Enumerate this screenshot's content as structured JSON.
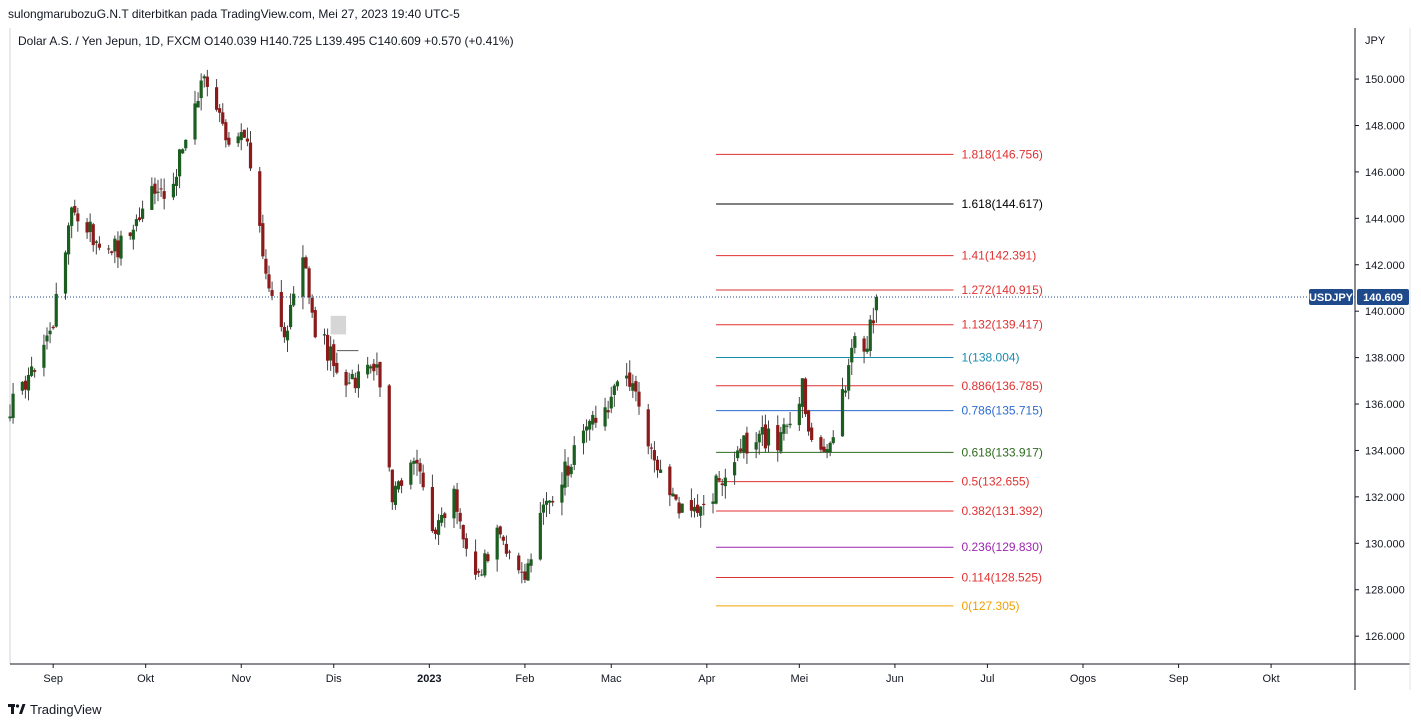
{
  "header": {
    "published_line": "sulongmarubozuG.N.T diterbitkan pada TradingView.com, Mei 27, 2023 19:40 UTC-5"
  },
  "legend": {
    "symbol": "Dolar A.S. / Yen Jepun, 1D, FXCM",
    "ohlc": "O140.039  H140.725  L139.495  C140.609  +0.570 (+0.41%)"
  },
  "footer": {
    "brand_label": "TradingView",
    "logo_icon": "tradingview-logo-icon"
  },
  "chart_data": {
    "type": "candlestick",
    "currency_label": "JPY",
    "last_price_tag": {
      "symbol": "USDJPY",
      "price": "140.609",
      "value": 140.609,
      "color": "#1e4a8c"
    },
    "y_axis": {
      "range": [
        124.8,
        152.2
      ],
      "ticks": [
        {
          "label": "126.000",
          "value": 126
        },
        {
          "label": "128.000",
          "value": 128
        },
        {
          "label": "130.000",
          "value": 130
        },
        {
          "label": "132.000",
          "value": 132
        },
        {
          "label": "134.000",
          "value": 134
        },
        {
          "label": "136.000",
          "value": 136
        },
        {
          "label": "138.000",
          "value": 138
        },
        {
          "label": "140.000",
          "value": 140
        },
        {
          "label": "142.000",
          "value": 142
        },
        {
          "label": "144.000",
          "value": 144
        },
        {
          "label": "146.000",
          "value": 146
        },
        {
          "label": "148.000",
          "value": 148
        },
        {
          "label": "150.000",
          "value": 150
        }
      ]
    },
    "x_axis": {
      "ticks": [
        {
          "label": "Sep",
          "date": "2022-09-01"
        },
        {
          "label": "Okt",
          "date": "2022-10-01"
        },
        {
          "label": "Nov",
          "date": "2022-11-01"
        },
        {
          "label": "Dis",
          "date": "2022-12-01"
        },
        {
          "label": "2023",
          "date": "2023-01-01",
          "bold": true
        },
        {
          "label": "Feb",
          "date": "2023-02-01"
        },
        {
          "label": "Mac",
          "date": "2023-03-01"
        },
        {
          "label": "Apr",
          "date": "2023-04-01"
        },
        {
          "label": "Mei",
          "date": "2023-05-01"
        },
        {
          "label": "Jun",
          "date": "2023-06-01"
        },
        {
          "label": "Jul",
          "date": "2023-07-01"
        },
        {
          "label": "Ogos",
          "date": "2023-08-01"
        },
        {
          "label": "Sep",
          "date": "2023-09-01"
        },
        {
          "label": "Okt",
          "date": "2023-10-01"
        }
      ]
    },
    "colors": {
      "up": "#1b5e20",
      "down": "#8b1a1a",
      "wick": "#444444"
    },
    "price_path": [
      {
        "date": "2022-08-18",
        "close": 135.8
      },
      {
        "date": "2022-08-25",
        "close": 137.2
      },
      {
        "date": "2022-09-01",
        "close": 139.6
      },
      {
        "date": "2022-09-07",
        "close": 144.0
      },
      {
        "date": "2022-09-14",
        "close": 143.2
      },
      {
        "date": "2022-09-22",
        "close": 142.5
      },
      {
        "date": "2022-09-29",
        "close": 144.4
      },
      {
        "date": "2022-10-07",
        "close": 145.3
      },
      {
        "date": "2022-10-14",
        "close": 147.0
      },
      {
        "date": "2022-10-20",
        "close": 150.1
      },
      {
        "date": "2022-10-24",
        "close": 148.9
      },
      {
        "date": "2022-10-28",
        "close": 147.4
      },
      {
        "date": "2022-11-01",
        "close": 148.2
      },
      {
        "date": "2022-11-04",
        "close": 146.7
      },
      {
        "date": "2022-11-10",
        "close": 141.0
      },
      {
        "date": "2022-11-15",
        "close": 139.2
      },
      {
        "date": "2022-11-21",
        "close": 142.0
      },
      {
        "date": "2022-11-25",
        "close": 139.2
      },
      {
        "date": "2022-11-30",
        "close": 138.1
      },
      {
        "date": "2022-12-05",
        "close": 136.6
      },
      {
        "date": "2022-12-12",
        "close": 137.5
      },
      {
        "date": "2022-12-15",
        "close": 137.8
      },
      {
        "date": "2022-12-20",
        "close": 131.8
      },
      {
        "date": "2022-12-27",
        "close": 133.5
      },
      {
        "date": "2023-01-03",
        "close": 130.5
      },
      {
        "date": "2023-01-09",
        "close": 131.8
      },
      {
        "date": "2023-01-16",
        "close": 128.3
      },
      {
        "date": "2023-01-23",
        "close": 130.2
      },
      {
        "date": "2023-02-01",
        "close": 128.8
      },
      {
        "date": "2023-02-06",
        "close": 131.3
      },
      {
        "date": "2023-02-14",
        "close": 133.0
      },
      {
        "date": "2023-02-21",
        "close": 134.8
      },
      {
        "date": "2023-02-28",
        "close": 136.0
      },
      {
        "date": "2023-03-08",
        "close": 137.3
      },
      {
        "date": "2023-03-13",
        "close": 134.0
      },
      {
        "date": "2023-03-22",
        "close": 131.6
      },
      {
        "date": "2023-03-27",
        "close": 131.2
      },
      {
        "date": "2023-04-03",
        "close": 132.2
      },
      {
        "date": "2023-04-10",
        "close": 133.7
      },
      {
        "date": "2023-04-17",
        "close": 134.7
      },
      {
        "date": "2023-04-24",
        "close": 134.2
      },
      {
        "date": "2023-05-02",
        "close": 136.6
      },
      {
        "date": "2023-05-05",
        "close": 134.3
      },
      {
        "date": "2023-05-10",
        "close": 134.4
      },
      {
        "date": "2023-05-15",
        "close": 136.2
      },
      {
        "date": "2023-05-18",
        "close": 138.6
      },
      {
        "date": "2023-05-23",
        "close": 138.6
      },
      {
        "date": "2023-05-26",
        "close": 140.609
      }
    ],
    "markers": [
      {
        "name": "upper-gray-box",
        "date_start": "2022-11-30",
        "date_end": "2022-12-05",
        "price_top": 139.8,
        "price_bottom": 139.0,
        "fill": "#d6d6d6"
      },
      {
        "name": "gray-pointer-line",
        "date_start": "2022-12-02",
        "date_end": "2022-12-09",
        "price": 138.3,
        "color": "#555555"
      }
    ],
    "fibonacci_levels": [
      {
        "label": "1.818(146.756)",
        "value": 146.756,
        "color": "#e03131"
      },
      {
        "label": "1.618(144.617)",
        "value": 144.617,
        "color": "#000000"
      },
      {
        "label": "1.41(142.391)",
        "value": 142.391,
        "color": "#e03131"
      },
      {
        "label": "1.272(140.915)",
        "value": 140.915,
        "color": "#e03131"
      },
      {
        "label": "1.132(139.417)",
        "value": 139.417,
        "color": "#e03131"
      },
      {
        "label": "1(138.004)",
        "value": 138.004,
        "color": "#1a8cb0"
      },
      {
        "label": "0.886(136.785)",
        "value": 136.785,
        "color": "#e03131"
      },
      {
        "label": "0.786(135.715)",
        "value": 135.715,
        "color": "#2d6ccf"
      },
      {
        "label": "0.618(133.917)",
        "value": 133.917,
        "color": "#2e6b1f"
      },
      {
        "label": "0.5(132.655)",
        "value": 132.655,
        "color": "#e03131"
      },
      {
        "label": "0.382(131.392)",
        "value": 131.392,
        "color": "#e03131"
      },
      {
        "label": "0.236(129.830)",
        "value": 129.83,
        "color": "#9c27b0"
      },
      {
        "label": "0.114(128.525)",
        "value": 128.525,
        "color": "#e03131"
      },
      {
        "label": "0(127.305)",
        "value": 127.305,
        "color": "#f0a000"
      }
    ],
    "fibonacci_start_date": "2023-04-04",
    "fibonacci_end_date": "2023-06-20"
  }
}
